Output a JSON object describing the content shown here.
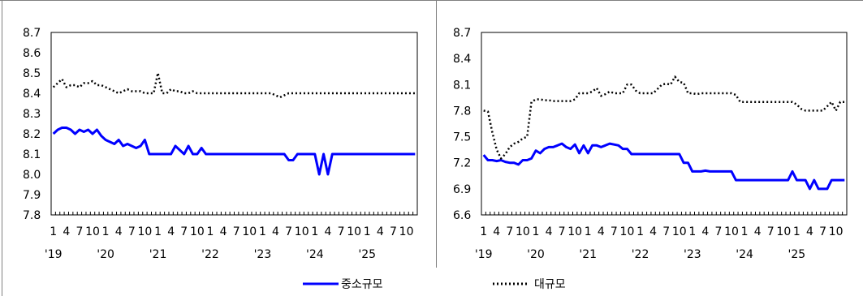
{
  "legend": {
    "sme_label": "중소규모",
    "large_label": "대규모"
  },
  "chart_data": [
    {
      "type": "line",
      "ylim": [
        7.8,
        8.7
      ],
      "yticks": [
        "7.8",
        "7.9",
        "8.0",
        "8.1",
        "8.2",
        "8.3",
        "8.4",
        "8.5",
        "8.6",
        "8.7"
      ],
      "x_month_labels": [
        "1",
        "4",
        "7",
        "10",
        "1",
        "4",
        "7",
        "10",
        "1",
        "4",
        "7",
        "10",
        "1",
        "4",
        "7",
        "10",
        "1",
        "4",
        "7",
        "10",
        "1",
        "4",
        "7",
        "10",
        "1",
        "4",
        "7",
        "10"
      ],
      "x_year_labels": [
        "'19",
        "'20",
        "'21",
        "'22",
        "'23",
        "'24",
        "'25"
      ],
      "grid": false,
      "legend_position": "bottom",
      "series": [
        {
          "name": "중소규모",
          "color": "#0000ff",
          "style": "solid",
          "values": [
            8.2,
            8.22,
            8.23,
            8.23,
            8.22,
            8.2,
            8.22,
            8.21,
            8.22,
            8.2,
            8.22,
            8.19,
            8.17,
            8.16,
            8.15,
            8.17,
            8.14,
            8.15,
            8.14,
            8.13,
            8.14,
            8.17,
            8.1,
            8.1,
            8.1,
            8.1,
            8.1,
            8.1,
            8.14,
            8.12,
            8.1,
            8.14,
            8.1,
            8.1,
            8.13,
            8.1,
            8.1,
            8.1,
            8.1,
            8.1,
            8.1,
            8.1,
            8.1,
            8.1,
            8.1,
            8.1,
            8.1,
            8.1,
            8.1,
            8.1,
            8.1,
            8.1,
            8.1,
            8.1,
            8.07,
            8.07,
            8.1,
            8.1,
            8.1,
            8.1,
            8.1,
            8.0,
            8.1,
            8.0,
            8.1,
            8.1,
            8.1,
            8.1,
            8.1,
            8.1,
            8.1,
            8.1,
            8.1,
            8.1,
            8.1,
            8.1,
            8.1,
            8.1,
            8.1,
            8.1,
            8.1,
            8.1,
            8.1,
            8.1
          ]
        },
        {
          "name": "대규모",
          "color": "#000000",
          "style": "dotted",
          "values": [
            8.43,
            8.45,
            8.47,
            8.43,
            8.44,
            8.44,
            8.43,
            8.45,
            8.45,
            8.46,
            8.44,
            8.44,
            8.43,
            8.42,
            8.41,
            8.4,
            8.41,
            8.42,
            8.41,
            8.41,
            8.41,
            8.4,
            8.4,
            8.4,
            8.5,
            8.4,
            8.4,
            8.42,
            8.41,
            8.41,
            8.4,
            8.4,
            8.41,
            8.4,
            8.4,
            8.4,
            8.4,
            8.4,
            8.4,
            8.4,
            8.4,
            8.4,
            8.4,
            8.4,
            8.4,
            8.4,
            8.4,
            8.4,
            8.4,
            8.4,
            8.4,
            8.39,
            8.38,
            8.39,
            8.4,
            8.4,
            8.4,
            8.4,
            8.4,
            8.4,
            8.4,
            8.4,
            8.4,
            8.4,
            8.4,
            8.4,
            8.4,
            8.4,
            8.4,
            8.4,
            8.4,
            8.4,
            8.4,
            8.4,
            8.4,
            8.4,
            8.4,
            8.4,
            8.4,
            8.4,
            8.4,
            8.4,
            8.4,
            8.4
          ]
        }
      ]
    },
    {
      "type": "line",
      "ylim": [
        6.6,
        8.7
      ],
      "yticks": [
        "6.6",
        "6.9",
        "7.2",
        "7.5",
        "7.8",
        "8.1",
        "8.4",
        "8.7"
      ],
      "x_month_labels": [
        "1",
        "4",
        "7",
        "10",
        "1",
        "4",
        "7",
        "10",
        "1",
        "4",
        "7",
        "10",
        "1",
        "4",
        "7",
        "10",
        "1",
        "4",
        "7",
        "10",
        "1",
        "4",
        "7",
        "10",
        "1",
        "4",
        "7",
        "10"
      ],
      "x_year_labels": [
        "'19",
        "'20",
        "'21",
        "'22",
        "'23",
        "'24",
        "'25"
      ],
      "grid": false,
      "legend_position": "bottom",
      "series": [
        {
          "name": "중소규모",
          "color": "#0000ff",
          "style": "solid",
          "values": [
            7.29,
            7.23,
            7.23,
            7.22,
            7.23,
            7.21,
            7.2,
            7.2,
            7.18,
            7.23,
            7.23,
            7.25,
            7.34,
            7.31,
            7.36,
            7.38,
            7.38,
            7.4,
            7.42,
            7.38,
            7.36,
            7.41,
            7.31,
            7.4,
            7.31,
            7.4,
            7.4,
            7.38,
            7.4,
            7.42,
            7.41,
            7.4,
            7.36,
            7.36,
            7.3,
            7.3,
            7.3,
            7.3,
            7.3,
            7.3,
            7.3,
            7.3,
            7.3,
            7.3,
            7.3,
            7.3,
            7.2,
            7.2,
            7.1,
            7.1,
            7.1,
            7.11,
            7.1,
            7.1,
            7.1,
            7.1,
            7.1,
            7.1,
            7.0,
            7.0,
            7.0,
            7.0,
            7.0,
            7.0,
            7.0,
            7.0,
            7.0,
            7.0,
            7.0,
            7.0,
            7.0,
            7.1,
            7.0,
            7.0,
            7.0,
            6.9,
            7.0,
            6.9,
            6.9,
            6.9,
            7.0,
            7.0,
            7.0,
            7.0
          ]
        },
        {
          "name": "대규모",
          "color": "#000000",
          "style": "dotted",
          "values": [
            7.8,
            7.79,
            7.55,
            7.35,
            7.25,
            7.3,
            7.38,
            7.42,
            7.44,
            7.48,
            7.5,
            7.9,
            7.93,
            7.93,
            7.92,
            7.92,
            7.91,
            7.91,
            7.91,
            7.91,
            7.91,
            7.93,
            8.0,
            8.0,
            8.0,
            8.02,
            8.06,
            7.97,
            7.99,
            8.02,
            8.0,
            8.0,
            8.0,
            8.1,
            8.1,
            8.03,
            8.0,
            8.0,
            8.0,
            8.0,
            8.05,
            8.1,
            8.11,
            8.1,
            8.19,
            8.13,
            8.12,
            8.0,
            8.0,
            7.99,
            8.0,
            8.0,
            8.0,
            8.0,
            8.0,
            8.0,
            8.0,
            8.0,
            7.98,
            7.9,
            7.9,
            7.9,
            7.9,
            7.9,
            7.9,
            7.9,
            7.9,
            7.9,
            7.9,
            7.9,
            7.9,
            7.9,
            7.87,
            7.82,
            7.8,
            7.8,
            7.8,
            7.8,
            7.8,
            7.85,
            7.9,
            7.8,
            7.9,
            7.9
          ]
        }
      ]
    }
  ]
}
